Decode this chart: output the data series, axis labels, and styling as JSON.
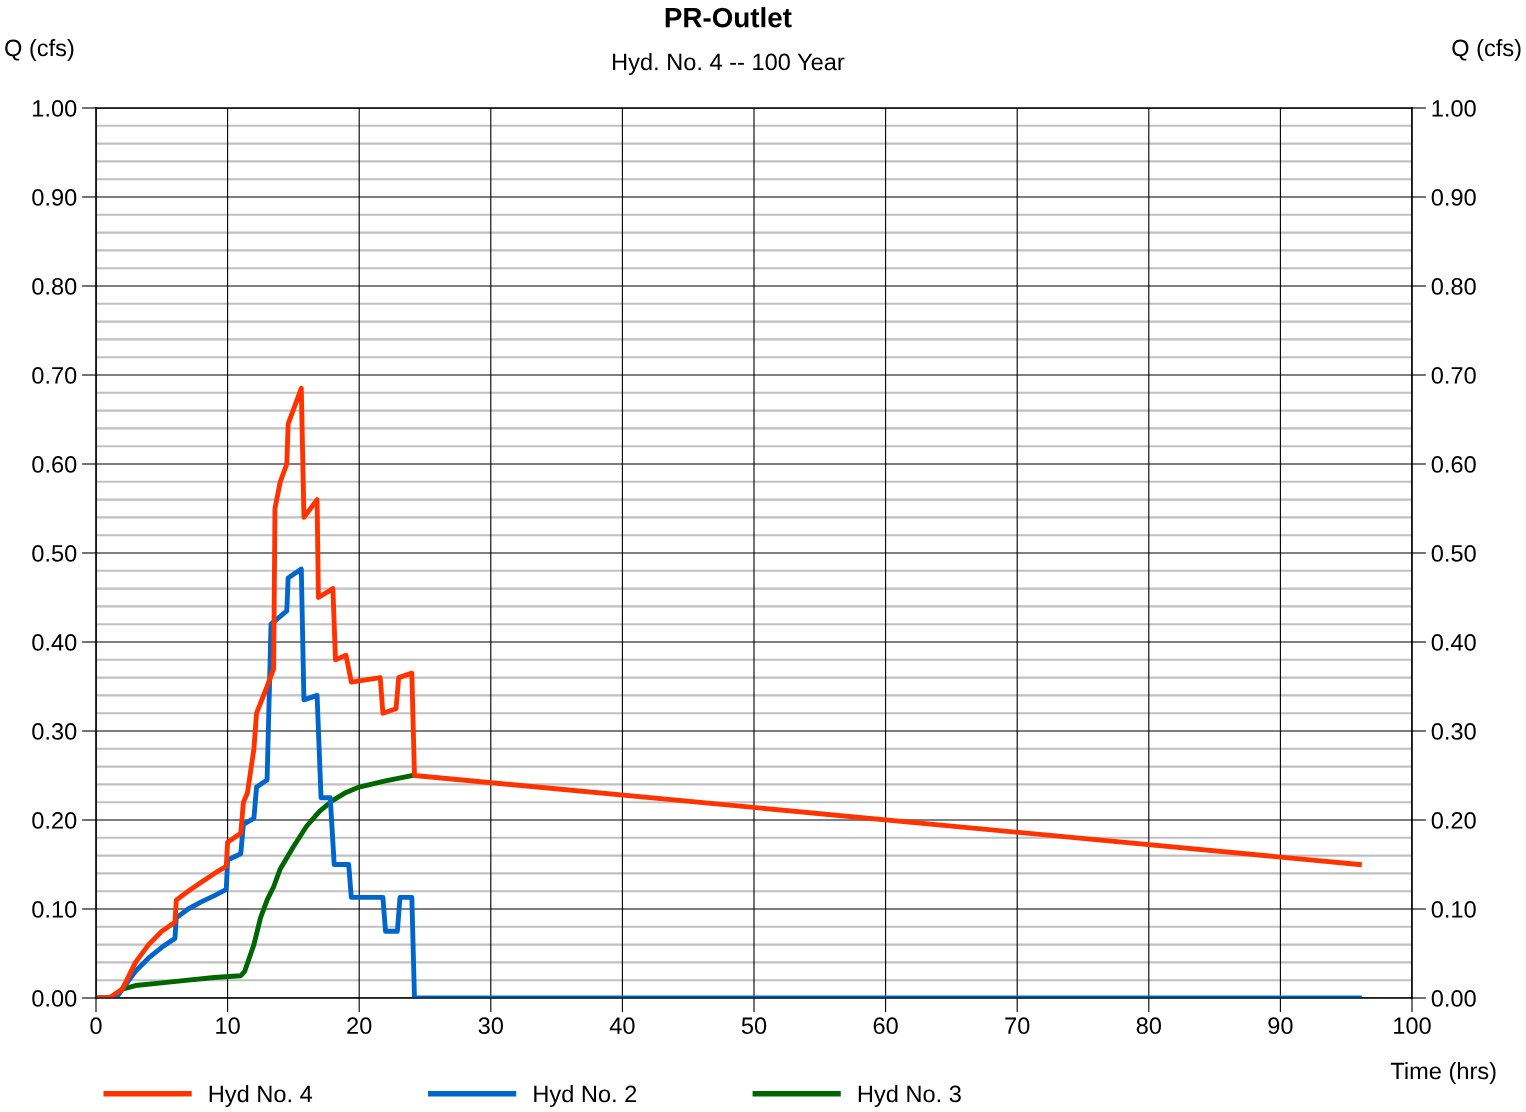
{
  "chart_data": {
    "type": "line",
    "title": "PR-Outlet",
    "subtitle": "Hyd. No. 4 -- 100 Year",
    "xlabel": "Time (hrs)",
    "ylabel": "Q (cfs)",
    "y2label": "Q (cfs)",
    "xlim": [
      0,
      100
    ],
    "xticks": [
      0,
      10,
      20,
      30,
      40,
      50,
      60,
      70,
      80,
      90,
      100
    ],
    "ylim": [
      0,
      1
    ],
    "yticks": [
      {
        "value": 0,
        "label": "0.00"
      },
      {
        "value": 0.1,
        "label": "0.10"
      },
      {
        "value": 0.2,
        "label": "0.20"
      },
      {
        "value": 0.3,
        "label": "0.30"
      },
      {
        "value": 0.4,
        "label": "0.40"
      },
      {
        "value": 0.5,
        "label": "0.50"
      },
      {
        "value": 0.6,
        "label": "0.60"
      },
      {
        "value": 0.7,
        "label": "0.70"
      },
      {
        "value": 0.8,
        "label": "0.80"
      },
      {
        "value": 0.9,
        "label": "0.90"
      },
      {
        "value": 1,
        "label": "1.00"
      }
    ],
    "y2lim": [
      0,
      1
    ],
    "y2ticks": [
      {
        "value": 0,
        "label": "0.00"
      },
      {
        "value": 0.1,
        "label": "0.10"
      },
      {
        "value": 0.2,
        "label": "0.20"
      },
      {
        "value": 0.3,
        "label": "0.30"
      },
      {
        "value": 0.4,
        "label": "0.40"
      },
      {
        "value": 0.5,
        "label": "0.50"
      },
      {
        "value": 0.6,
        "label": "0.60"
      },
      {
        "value": 0.7,
        "label": "0.70"
      },
      {
        "value": 0.8,
        "label": "0.80"
      },
      {
        "value": 0.9,
        "label": "0.90"
      },
      {
        "value": 1,
        "label": "1.00"
      }
    ],
    "grid": true,
    "legend": "bottom",
    "marker": "none",
    "line_style": "solid",
    "series": [
      {
        "name": "Hyd No. 3",
        "color": "#006600",
        "x": [
          0,
          1.5,
          2,
          3,
          5,
          7,
          9,
          11,
          11.3,
          12,
          12.5,
          13,
          13.5,
          14,
          15,
          16,
          17,
          18,
          19,
          20,
          22,
          24
        ],
        "values": [
          0,
          0,
          0.01,
          0.014,
          0.017,
          0.02,
          0.023,
          0.025,
          0.03,
          0.06,
          0.09,
          0.11,
          0.125,
          0.145,
          0.17,
          0.193,
          0.21,
          0.222,
          0.231,
          0.237,
          0.244,
          0.25
        ]
      },
      {
        "name": "Hyd No. 2",
        "color": "#0066cc",
        "x": [
          0,
          1.5,
          2,
          3,
          4,
          5,
          6,
          6.1,
          7,
          8,
          9,
          9.9,
          10,
          11,
          11.2,
          12,
          12.2,
          13,
          13.3,
          14.5,
          14.6,
          15.6,
          15.8,
          16.8,
          17.1,
          17.8,
          18.1,
          19.2,
          19.4,
          21.8,
          22,
          22.9,
          23.1,
          24,
          24.2,
          96
        ],
        "values": [
          0,
          0,
          0.01,
          0.03,
          0.045,
          0.057,
          0.067,
          0.09,
          0.1,
          0.108,
          0.115,
          0.122,
          0.155,
          0.162,
          0.195,
          0.202,
          0.237,
          0.245,
          0.42,
          0.435,
          0.472,
          0.482,
          0.335,
          0.34,
          0.225,
          0.225,
          0.15,
          0.15,
          0.113,
          0.113,
          0.075,
          0.075,
          0.113,
          0.113,
          0,
          0
        ]
      },
      {
        "name": "Hyd No. 4",
        "color": "#ff3300",
        "x": [
          0,
          1,
          2,
          3,
          4,
          5,
          6,
          6.1,
          7,
          8,
          9,
          9.9,
          10,
          11,
          11.2,
          11.5,
          12,
          12.2,
          13,
          13.5,
          13.6,
          14,
          14.5,
          14.6,
          15.6,
          15.8,
          16.8,
          16.9,
          18,
          18.2,
          19,
          19.4,
          21.6,
          21.8,
          22.8,
          23,
          24,
          24.2,
          96
        ],
        "values": [
          0,
          0,
          0.01,
          0.04,
          0.06,
          0.075,
          0.085,
          0.11,
          0.12,
          0.13,
          0.14,
          0.148,
          0.175,
          0.185,
          0.22,
          0.23,
          0.28,
          0.32,
          0.35,
          0.37,
          0.55,
          0.58,
          0.6,
          0.645,
          0.685,
          0.54,
          0.56,
          0.45,
          0.46,
          0.38,
          0.385,
          0.355,
          0.36,
          0.32,
          0.325,
          0.36,
          0.365,
          0.25,
          0.15
        ]
      }
    ]
  }
}
